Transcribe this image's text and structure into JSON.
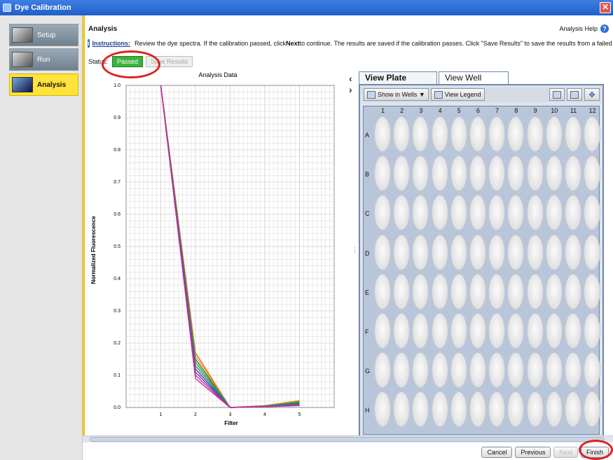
{
  "window": {
    "title": "Dye Calibration"
  },
  "nav": [
    {
      "label": "Setup",
      "active": false
    },
    {
      "label": "Run",
      "active": false
    },
    {
      "label": "Analysis",
      "active": true
    }
  ],
  "panel": {
    "title": "Analysis",
    "help_label": "Analysis Help",
    "instructions_label": "Instructions:",
    "instructions_pre": "Review the dye spectra. If the calibration passed, click ",
    "instructions_bold": "Next",
    "instructions_post": " to continue. The results are saved if the calibration passes. Click \"Save Results\" to save the results from a failed calibration",
    "status_label": "Status:",
    "status_value": "Passed",
    "save_results_label": "Save Results"
  },
  "chart_data": {
    "type": "line",
    "title": "Analysis Data",
    "xlabel": "Filter",
    "ylabel": "Normalized Fluorescence",
    "xlim": [
      0,
      6
    ],
    "ylim": [
      0,
      1.0
    ],
    "x_ticks": [
      1,
      2,
      3,
      4,
      5
    ],
    "y_ticks": [
      "0.0",
      "0.1",
      "0.2",
      "0.3",
      "0.4",
      "0.5",
      "0.6",
      "0.7",
      "0.8",
      "0.9",
      "1.0"
    ],
    "x": [
      1,
      2,
      3,
      4,
      5
    ],
    "series": [
      {
        "values": [
          1.0,
          0.17,
          0.0,
          0.005,
          0.02
        ],
        "color": "#e06020"
      },
      {
        "values": [
          1.0,
          0.16,
          0.0,
          0.006,
          0.022
        ],
        "color": "#ff9a2a"
      },
      {
        "values": [
          1.0,
          0.15,
          0.0,
          0.004,
          0.015
        ],
        "color": "#2a7f2a"
      },
      {
        "values": [
          1.0,
          0.14,
          0.0,
          0.005,
          0.018
        ],
        "color": "#3aa33a"
      },
      {
        "values": [
          1.0,
          0.13,
          0.0,
          0.004,
          0.012
        ],
        "color": "#1b8fa8"
      },
      {
        "values": [
          1.0,
          0.12,
          0.0,
          0.003,
          0.01
        ],
        "color": "#4a4aa8"
      },
      {
        "values": [
          1.0,
          0.11,
          0.0,
          0.003,
          0.008
        ],
        "color": "#7a3aa8"
      },
      {
        "values": [
          1.0,
          0.1,
          0.0,
          0.003,
          0.008
        ],
        "color": "#b03aa8"
      },
      {
        "values": [
          1.0,
          0.09,
          0.0,
          0.002,
          0.006
        ],
        "color": "#cc2a9a"
      }
    ]
  },
  "plate": {
    "tabs": [
      "View Plate Layout",
      "View Well Table"
    ],
    "active_tab": 0,
    "show_in_wells_label": "Show in Wells ▼",
    "view_legend_label": "View Legend",
    "columns": [
      "1",
      "2",
      "3",
      "4",
      "5",
      "6",
      "7",
      "8",
      "9",
      "10",
      "11",
      "12"
    ],
    "rows": [
      "A",
      "B",
      "C",
      "D",
      "E",
      "F",
      "G",
      "H"
    ]
  },
  "buttons": {
    "cancel": "Cancel",
    "previous": "Previous",
    "next": "Next",
    "finish": "Finish"
  }
}
